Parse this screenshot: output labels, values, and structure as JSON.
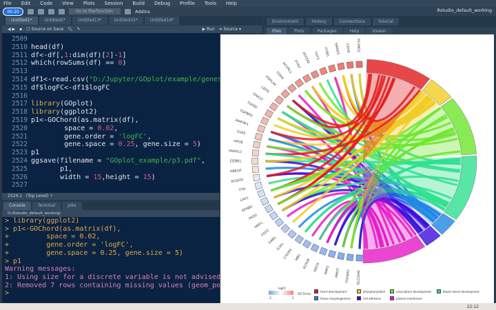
{
  "menu": [
    "File",
    "Edit",
    "Code",
    "View",
    "Plots",
    "Session",
    "Build",
    "Debug",
    "Profile",
    "Tools",
    "Help"
  ],
  "timer": "00:20",
  "toolbar": {
    "goto_placeholder": "Go to file/function",
    "addins": "Addins"
  },
  "project": "Rstudio_default_working",
  "source_tabs": [
    "Untitled1*",
    "Untitled2*",
    "Untitled13*",
    "Untitled15*",
    "Untitled14*"
  ],
  "editor_toolbar": {
    "source_on_save": "Source on Save",
    "run": "Run",
    "source": "Source"
  },
  "code_lines": [
    {
      "n": "2509",
      "html": ""
    },
    {
      "n": "2510",
      "html": "head(df)"
    },
    {
      "n": "2511",
      "html": "df<-df[,<span class='num'>1</span>:dim(df)[<span class='num'>2</span>]-<span class='num'>1</span>]"
    },
    {
      "n": "2512",
      "html": "which(rowSums(df) == <span class='num'>0</span>)"
    },
    {
      "n": "2513",
      "html": ""
    },
    {
      "n": "2514",
      "html": "df1<-read.csv(<span class='str'>\"D:/Jupyter/GOplot/example/geneslogfc</span>"
    },
    {
      "n": "2515",
      "html": "df$logFC<-df1$logFC"
    },
    {
      "n": "2516",
      "html": ""
    },
    {
      "n": "2517",
      "html": "<span class='kw'>library</span>(GOplot)"
    },
    {
      "n": "2518",
      "html": "<span class='kw'>library</span>(ggplot2)"
    },
    {
      "n": "2519",
      "html": "p1<-GOChord(as.matrix(df),"
    },
    {
      "n": "2520",
      "html": "        space = <span class='num'>0.02</span>,"
    },
    {
      "n": "2521",
      "html": "        gene.order = <span class='str'>'logFC'</span>,"
    },
    {
      "n": "2522",
      "html": "        gene.space = <span class='num'>0.25</span>, gene.size = <span class='num'>5</span>)"
    },
    {
      "n": "2523",
      "html": "p1"
    },
    {
      "n": "2524",
      "html": "ggsave(filename = <span class='str'>\"GOplot_example/p3.pdf\"</span>,"
    },
    {
      "n": "2525",
      "html": "       p1,"
    },
    {
      "n": "2526",
      "html": "       width = <span class='num'>15</span>,height = <span class='num'>15</span>)"
    },
    {
      "n": "2527",
      "html": ""
    }
  ],
  "status": {
    "position": "2524:1",
    "scope": "(Top Level) ÷"
  },
  "console_tabs": [
    "Console",
    "Terminal",
    "Jobs"
  ],
  "console_path": "D:/Rstudio_default_working/",
  "console_lines": [
    {
      "cls": "cin",
      "text": "> library(ggplot2)"
    },
    {
      "cls": "cin",
      "text": "> p1<-GOChord(as.matrix(df),"
    },
    {
      "cls": "cin",
      "text": "+         space = 0.02,"
    },
    {
      "cls": "cin",
      "text": "+         gene.order = 'logFC',"
    },
    {
      "cls": "cin",
      "text": "+         gene.space = 0.25, gene.size = 5)"
    },
    {
      "cls": "cin",
      "text": "> p1"
    },
    {
      "cls": "warn",
      "text": "Warning messages:"
    },
    {
      "cls": "warn",
      "text": "1: Using size for a discrete variable is not advised."
    },
    {
      "cls": "warn",
      "text": "2: Removed 7 rows containing missing values (geom_point)."
    },
    {
      "cls": "cin",
      "text": "> "
    }
  ],
  "right_tabs": [
    "Environment",
    "History",
    "Connections",
    "Tutorial"
  ],
  "right_tabs2": [
    "Files",
    "Plots",
    "Packages",
    "Help",
    "Viewer"
  ],
  "genes": [
    "PLXND1",
    "CDH5",
    "SMAD3",
    "ITGB1",
    "THY1",
    "ATP2A2",
    "PTK2",
    "ACVRL1",
    "CDH2",
    "PNPLA6",
    "LEPR",
    "GNA13",
    "TGFB2",
    "TGFBR3",
    "MAP3K1",
    "GJA5",
    "APOE",
    "VANGL2",
    "CERKL",
    "HBEGF",
    "ECSCR",
    "TTN",
    "CAV1",
    "EFNB2",
    "PKD2",
    "NRP1",
    "FGF2",
    "GAB1",
    "GJA1",
    "CXCR4",
    "MB1",
    "KCNJ8",
    "RECK",
    "NRP2",
    "AMOT",
    "TGFBR2",
    "SLC22A5"
  ],
  "go_terms": [
    {
      "label": "heart development",
      "color": "#e31a1c"
    },
    {
      "label": "phosphorylation",
      "color": "#f2cc24"
    },
    {
      "label": "vasculature development",
      "color": "#6de62b"
    },
    {
      "label": "blood vessel development",
      "color": "#2ee08f"
    },
    {
      "label": "tissue morphogenesis",
      "color": "#1f88e5"
    },
    {
      "label": "cell adhesion",
      "color": "#3a0ee0"
    },
    {
      "label": "plasma membrane",
      "color": "#e619c8"
    }
  ],
  "legend": {
    "logfc_title": "logFC",
    "logfc_min": "-2",
    "logfc_max": "2",
    "go_title": "GO Terms",
    "logfc_high": "#f08080",
    "logfc_low": "#7fa6e8"
  },
  "clock": "22:12"
}
